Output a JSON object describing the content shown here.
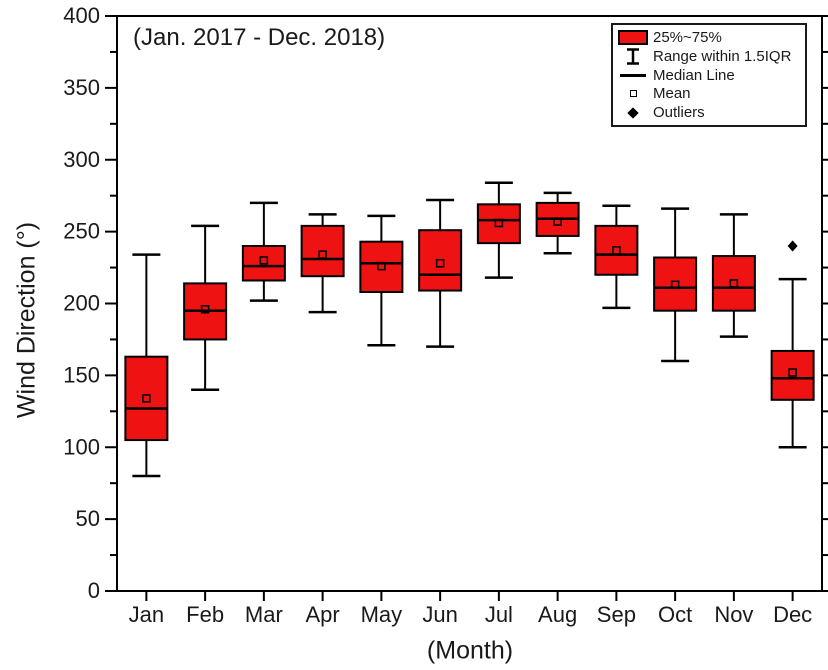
{
  "chart_data": {
    "type": "box",
    "title": "(Jan. 2017 - Dec. 2018)",
    "xlabel": "(Month)",
    "ylabel": "Wind Direction (°)",
    "ylim": [
      0,
      400
    ],
    "ytick_major": 50,
    "ytick_minor": 25,
    "grid": false,
    "box_color": "#ee1212",
    "stroke_color": "#000000",
    "background_color": "#ffffff",
    "categories": [
      "Jan",
      "Feb",
      "Mar",
      "Apr",
      "May",
      "Jun",
      "Jul",
      "Aug",
      "Sep",
      "Oct",
      "Nov",
      "Dec"
    ],
    "series": [
      {
        "month": "Jan",
        "low": 80,
        "q1": 105,
        "median": 127,
        "mean": 134,
        "q3": 163,
        "high": 234,
        "outliers": []
      },
      {
        "month": "Feb",
        "low": 140,
        "q1": 175,
        "median": 195,
        "mean": 196,
        "q3": 214,
        "high": 254,
        "outliers": []
      },
      {
        "month": "Mar",
        "low": 202,
        "q1": 216,
        "median": 226,
        "mean": 230,
        "q3": 240,
        "high": 270,
        "outliers": []
      },
      {
        "month": "Apr",
        "low": 194,
        "q1": 219,
        "median": 231,
        "mean": 234,
        "q3": 254,
        "high": 262,
        "outliers": []
      },
      {
        "month": "May",
        "low": 171,
        "q1": 208,
        "median": 228,
        "mean": 226,
        "q3": 243,
        "high": 261,
        "outliers": []
      },
      {
        "month": "Jun",
        "low": 170,
        "q1": 209,
        "median": 220,
        "mean": 228,
        "q3": 251,
        "high": 272,
        "outliers": []
      },
      {
        "month": "Jul",
        "low": 218,
        "q1": 242,
        "median": 258,
        "mean": 256,
        "q3": 269,
        "high": 284,
        "outliers": []
      },
      {
        "month": "Aug",
        "low": 235,
        "q1": 247,
        "median": 259,
        "mean": 257,
        "q3": 270,
        "high": 277,
        "outliers": []
      },
      {
        "month": "Sep",
        "low": 197,
        "q1": 220,
        "median": 234,
        "mean": 237,
        "q3": 254,
        "high": 268,
        "outliers": []
      },
      {
        "month": "Oct",
        "low": 160,
        "q1": 195,
        "median": 211,
        "mean": 213,
        "q3": 232,
        "high": 266,
        "outliers": []
      },
      {
        "month": "Nov",
        "low": 177,
        "q1": 195,
        "median": 211,
        "mean": 214,
        "q3": 233,
        "high": 262,
        "outliers": []
      },
      {
        "month": "Dec",
        "low": 100,
        "q1": 133,
        "median": 148,
        "mean": 152,
        "q3": 167,
        "high": 217,
        "outliers": [
          240
        ]
      }
    ],
    "legend": {
      "position": "top-right",
      "items": [
        {
          "glyph": "box",
          "label": "25%~75%"
        },
        {
          "glyph": "whisker",
          "label": "Range within 1.5IQR"
        },
        {
          "glyph": "line",
          "label": "Median Line"
        },
        {
          "glyph": "square",
          "label": "Mean"
        },
        {
          "glyph": "diamond",
          "label": "Outliers"
        }
      ]
    }
  }
}
